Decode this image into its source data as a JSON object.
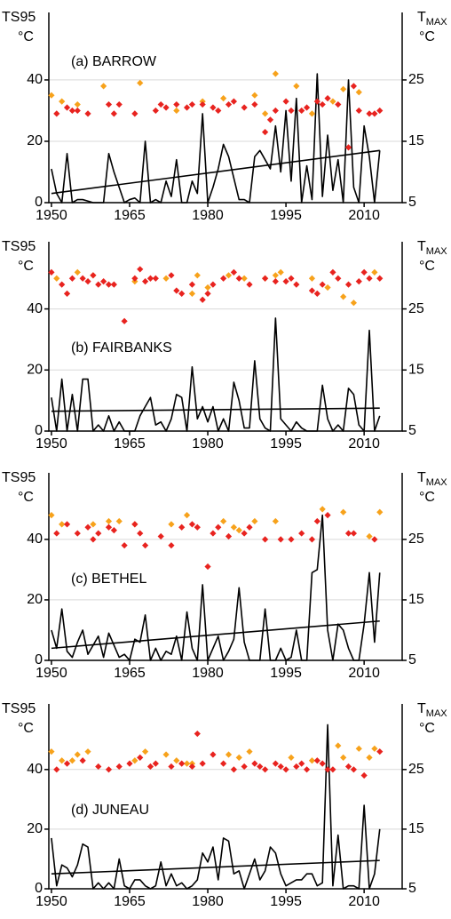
{
  "chart_data": [
    {
      "type": "line",
      "title": "(a) BARROW",
      "ylabel": "TS95",
      "yunit": "°C",
      "y2label": "T",
      "y2label_sub": "MAX",
      "y2unit": "°C",
      "xlim": [
        1949.5,
        2017.3
      ],
      "xticks": [
        1950,
        1965,
        1980,
        1995,
        2010
      ],
      "ylim": [
        0,
        62
      ],
      "yticks": [
        0,
        20,
        40
      ],
      "y2lim": [
        5,
        36
      ],
      "y2ticks": [
        5,
        15,
        25
      ],
      "grid": true,
      "x": [
        1950,
        1951,
        1952,
        1953,
        1954,
        1955,
        1956,
        1957,
        1958,
        1959,
        1960,
        1961,
        1962,
        1963,
        1964,
        1965,
        1966,
        1967,
        1968,
        1969,
        1970,
        1971,
        1972,
        1973,
        1974,
        1975,
        1976,
        1977,
        1978,
        1979,
        1980,
        1981,
        1982,
        1983,
        1984,
        1985,
        1986,
        1987,
        1988,
        1989,
        1990,
        1991,
        1992,
        1993,
        1994,
        1995,
        1996,
        1997,
        1998,
        1999,
        2000,
        2001,
        2002,
        2003,
        2004,
        2005,
        2006,
        2007,
        2008,
        2009,
        2010,
        2011,
        2012,
        2013
      ],
      "series": [
        {
          "color": "#000000",
          "values": [
            11,
            3,
            0,
            16,
            0,
            1,
            1,
            0.5,
            0,
            0,
            0,
            16,
            10,
            5,
            0,
            1,
            1.5,
            0,
            20,
            0,
            1,
            0,
            7,
            2,
            14,
            0,
            0,
            7,
            3,
            29,
            0,
            5,
            11,
            19,
            15,
            8,
            1,
            1,
            0,
            15,
            17,
            14,
            11,
            25,
            10,
            30,
            7,
            34,
            0,
            12,
            1,
            42,
            2,
            22,
            4,
            14,
            0,
            40,
            5,
            0,
            25,
            15,
            0,
            17
          ]
        },
        {
          "color": "#000000",
          "x": [
            1950,
            2013
          ],
          "values": [
            3,
            17
          ]
        },
        {
          "color": "#f7a21b",
          "axis": "y2",
          "x": [
            1950,
            1952,
            1955,
            1960,
            1967,
            1974,
            1979,
            1983,
            1989,
            1991,
            1993,
            1997,
            2000,
            2004,
            2006,
            2009
          ],
          "values": [
            22.5,
            21.5,
            21,
            24,
            24.5,
            20,
            21.5,
            22,
            22.5,
            19.5,
            26,
            24,
            19.5,
            21.5,
            23.5,
            23
          ]
        },
        {
          "color": "#e8231f",
          "axis": "y2",
          "x": [
            1951,
            1953,
            1954,
            1955,
            1957,
            1961,
            1962,
            1963,
            1966,
            1970,
            1971,
            1972,
            1974,
            1976,
            1977,
            1979,
            1981,
            1982,
            1984,
            1985,
            1987,
            1989,
            1991,
            1992,
            1993,
            1995,
            1996,
            1998,
            1999,
            2001,
            2002,
            2003,
            2005,
            2007,
            2008,
            2009,
            2011,
            2012,
            2013
          ],
          "values": [
            19.5,
            20.5,
            20,
            20,
            19.5,
            21,
            19.5,
            21,
            19.5,
            20,
            21,
            20.5,
            21,
            20.5,
            21,
            21,
            20.5,
            20,
            21,
            21.5,
            20.5,
            21,
            16.5,
            18.5,
            20,
            21.5,
            20,
            20,
            20.5,
            21.5,
            21,
            22,
            21,
            14,
            24,
            20,
            19.5,
            19.5,
            20
          ]
        }
      ]
    },
    {
      "type": "line",
      "title": "(b) FAIRBANKS",
      "ylabel": "TS95",
      "yunit": "°C",
      "y2label": "T",
      "y2label_sub": "MAX",
      "y2unit": "°C",
      "xlim": [
        1949.5,
        2017.3
      ],
      "xticks": [
        1950,
        1965,
        1980,
        1995,
        2010
      ],
      "ylim": [
        0,
        62
      ],
      "yticks": [
        0,
        20,
        40
      ],
      "y2lim": [
        5,
        36
      ],
      "y2ticks": [
        5,
        15,
        25
      ],
      "grid": true,
      "x": [
        1950,
        1951,
        1952,
        1953,
        1954,
        1955,
        1956,
        1957,
        1958,
        1959,
        1960,
        1961,
        1962,
        1963,
        1964,
        1965,
        1966,
        1967,
        1968,
        1969,
        1970,
        1971,
        1972,
        1973,
        1974,
        1975,
        1976,
        1977,
        1978,
        1979,
        1980,
        1981,
        1982,
        1983,
        1984,
        1985,
        1986,
        1987,
        1988,
        1989,
        1990,
        1991,
        1992,
        1993,
        1994,
        1995,
        1996,
        1997,
        1998,
        1999,
        2000,
        2001,
        2002,
        2003,
        2004,
        2005,
        2006,
        2007,
        2008,
        2009,
        2010,
        2011,
        2012,
        2013
      ],
      "series": [
        {
          "color": "#000000",
          "values": [
            11,
            0,
            17,
            0,
            12,
            0,
            17,
            17,
            0,
            2,
            0,
            5,
            0,
            3,
            0,
            0,
            0,
            5,
            8,
            11,
            2,
            3,
            0,
            4,
            12,
            11,
            0,
            21,
            4,
            8,
            3,
            8,
            0,
            4,
            0,
            16,
            10,
            1,
            1,
            23,
            4,
            1,
            0,
            37,
            4,
            2,
            0,
            3,
            1,
            0,
            0,
            0,
            15,
            4,
            0,
            2,
            0,
            14,
            12,
            2,
            0,
            33,
            0,
            5
          ]
        },
        {
          "color": "#000000",
          "x": [
            1950,
            2013
          ],
          "values": [
            6.5,
            7.5
          ]
        },
        {
          "color": "#f7a21b",
          "axis": "y2",
          "x": [
            1951,
            1955,
            1958,
            1966,
            1972,
            1977,
            1978,
            1980,
            1984,
            1987,
            1991,
            1993,
            1994,
            2000,
            2003,
            2006,
            2008,
            2012
          ],
          "values": [
            30,
            31,
            30.5,
            29.5,
            30,
            27.5,
            30.5,
            28.5,
            30.5,
            30,
            30,
            30.5,
            31,
            30,
            28.5,
            27,
            26,
            31
          ]
        },
        {
          "color": "#e8231f",
          "axis": "y2",
          "x": [
            1950,
            1952,
            1953,
            1954,
            1956,
            1957,
            1958,
            1959,
            1960,
            1961,
            1962,
            1964,
            1966,
            1967,
            1968,
            1969,
            1970,
            1973,
            1974,
            1975,
            1977,
            1979,
            1980,
            1981,
            1983,
            1985,
            1986,
            1988,
            1991,
            1993,
            1995,
            1996,
            1997,
            2000,
            2001,
            2002,
            2004,
            2005,
            2007,
            2009,
            2010,
            2011,
            2013
          ],
          "values": [
            31,
            29,
            27.5,
            30,
            30,
            29.5,
            30.5,
            29,
            29.5,
            29,
            29,
            23,
            30,
            31.5,
            29.5,
            30,
            30,
            30.5,
            28,
            27.5,
            29,
            26.5,
            27.5,
            29,
            30,
            31,
            30,
            29,
            30,
            29.5,
            29.5,
            30,
            29,
            28,
            27.5,
            29,
            31,
            30,
            29,
            29.5,
            31,
            30,
            30
          ]
        }
      ]
    },
    {
      "type": "line",
      "title": "(c) BETHEL",
      "ylabel": "TS95",
      "yunit": "°C",
      "y2label": "T",
      "y2label_sub": "MAX",
      "y2unit": "°C",
      "xlim": [
        1949.5,
        2017.3
      ],
      "xticks": [
        1950,
        1965,
        1980,
        1995,
        2010
      ],
      "ylim": [
        0,
        62
      ],
      "yticks": [
        0,
        20,
        40
      ],
      "y2lim": [
        5,
        36
      ],
      "y2ticks": [
        5,
        15,
        25
      ],
      "grid": true,
      "x": [
        1950,
        1951,
        1952,
        1953,
        1954,
        1955,
        1956,
        1957,
        1958,
        1959,
        1960,
        1961,
        1962,
        1963,
        1964,
        1965,
        1966,
        1967,
        1968,
        1969,
        1970,
        1971,
        1972,
        1973,
        1974,
        1975,
        1976,
        1977,
        1978,
        1979,
        1980,
        1981,
        1982,
        1983,
        1984,
        1985,
        1986,
        1987,
        1988,
        1989,
        1990,
        1991,
        1992,
        1993,
        1994,
        1995,
        1996,
        1997,
        1998,
        1999,
        2000,
        2001,
        2002,
        2003,
        2004,
        2005,
        2006,
        2007,
        2008,
        2009,
        2010,
        2011,
        2012,
        2013
      ],
      "series": [
        {
          "color": "#000000",
          "values": [
            10,
            4,
            17,
            3,
            1,
            6,
            10,
            2,
            5,
            8,
            1,
            9,
            5,
            1,
            2,
            0,
            7,
            6,
            15,
            0,
            4,
            0,
            3,
            2,
            8,
            0,
            16,
            4,
            0,
            25,
            0,
            4,
            8,
            0,
            3,
            7,
            24,
            6,
            0,
            0,
            0,
            17,
            0,
            0,
            4,
            0,
            1,
            10,
            0,
            0,
            29,
            30,
            48,
            10,
            0,
            12,
            10,
            4,
            0,
            0,
            12,
            29,
            6,
            29
          ]
        },
        {
          "color": "#000000",
          "x": [
            1950,
            2013
          ],
          "values": [
            4,
            13
          ]
        },
        {
          "color": "#f7a21b",
          "axis": "y2",
          "x": [
            1950,
            1952,
            1958,
            1961,
            1963,
            1966,
            1973,
            1976,
            1983,
            1985,
            1986,
            1989,
            1993,
            2002,
            2006,
            2011,
            2013
          ],
          "values": [
            29,
            27.5,
            27.5,
            28,
            28,
            27.5,
            27.5,
            29,
            28,
            27,
            26.5,
            28,
            28,
            30,
            29.5,
            25.5,
            29.5
          ]
        },
        {
          "color": "#e8231f",
          "axis": "y2",
          "x": [
            1951,
            1953,
            1955,
            1957,
            1958,
            1959,
            1961,
            1962,
            1964,
            1966,
            1967,
            1968,
            1971,
            1973,
            1975,
            1977,
            1978,
            1980,
            1981,
            1982,
            1984,
            1987,
            1988,
            1991,
            1994,
            1996,
            1998,
            2000,
            2001,
            2003,
            2007,
            2008,
            2012
          ],
          "values": [
            26,
            27.5,
            26,
            27,
            25,
            26,
            27,
            26.5,
            24,
            27.5,
            26,
            24,
            25.5,
            24,
            27,
            27.5,
            27,
            20.5,
            26,
            27,
            25.5,
            26,
            27,
            25,
            25,
            25,
            26,
            25,
            28,
            29,
            26,
            26,
            25
          ]
        }
      ]
    },
    {
      "type": "line",
      "title": "(d) JUNEAU",
      "ylabel": "TS95",
      "yunit": "°C",
      "y2label": "T",
      "y2label_sub": "MAX",
      "y2unit": "°C",
      "xlim": [
        1949.5,
        2017.3
      ],
      "xticks": [
        1950,
        1965,
        1980,
        1995,
        2010
      ],
      "ylim": [
        0,
        62
      ],
      "yticks": [
        0,
        20,
        40
      ],
      "y2lim": [
        5,
        36
      ],
      "y2ticks": [
        5,
        15,
        25
      ],
      "grid": true,
      "x": [
        1950,
        1951,
        1952,
        1953,
        1954,
        1955,
        1956,
        1957,
        1958,
        1959,
        1960,
        1961,
        1962,
        1963,
        1964,
        1965,
        1966,
        1967,
        1968,
        1969,
        1970,
        1971,
        1972,
        1973,
        1974,
        1975,
        1976,
        1977,
        1978,
        1979,
        1980,
        1981,
        1982,
        1983,
        1984,
        1985,
        1986,
        1987,
        1988,
        1989,
        1990,
        1991,
        1992,
        1993,
        1994,
        1995,
        1996,
        1997,
        1998,
        1999,
        2000,
        2001,
        2002,
        2003,
        2004,
        2005,
        2006,
        2007,
        2008,
        2009,
        2010,
        2011,
        2012,
        2013
      ],
      "series": [
        {
          "color": "#000000",
          "values": [
            17,
            1,
            8,
            7,
            4,
            8,
            15,
            14,
            0,
            2,
            0,
            2,
            0,
            10,
            1,
            0,
            3,
            3,
            1,
            0,
            1,
            9,
            1,
            5,
            1,
            2,
            0,
            1,
            3,
            12,
            9,
            14,
            3,
            17,
            16,
            5,
            6,
            0,
            5,
            10,
            3,
            6,
            14,
            12,
            5,
            1,
            2,
            3,
            3,
            5,
            5,
            1,
            2,
            55,
            1,
            18,
            0,
            1,
            1,
            0,
            28,
            0,
            5,
            20
          ]
        },
        {
          "color": "#000000",
          "x": [
            1950,
            2013
          ],
          "values": [
            5,
            9.5
          ]
        },
        {
          "color": "#f7a21b",
          "axis": "y2",
          "x": [
            1950,
            1952,
            1954,
            1955,
            1957,
            1966,
            1968,
            1972,
            1974,
            1976,
            1977,
            1984,
            1986,
            1988,
            1996,
            2000,
            2005,
            2006,
            2009,
            2011,
            2012
          ],
          "values": [
            28,
            26.5,
            26.5,
            27.5,
            28,
            26.5,
            28,
            27.5,
            26.5,
            26,
            26,
            27.5,
            27,
            28,
            27,
            26.5,
            29,
            27,
            28.5,
            27,
            28.5
          ]
        },
        {
          "color": "#e8231f",
          "axis": "y2",
          "x": [
            1951,
            1953,
            1956,
            1959,
            1961,
            1963,
            1965,
            1967,
            1969,
            1970,
            1973,
            1975,
            1977,
            1978,
            1979,
            1981,
            1983,
            1985,
            1987,
            1989,
            1990,
            1991,
            1993,
            1994,
            1995,
            1997,
            1998,
            1999,
            2001,
            2002,
            2003,
            2004,
            2007,
            2008,
            2010,
            2013
          ],
          "values": [
            25,
            26,
            26.5,
            25.5,
            25,
            25.5,
            26,
            27,
            25.5,
            26,
            25.5,
            26,
            25.5,
            31,
            26,
            27.5,
            26,
            25,
            25.5,
            26,
            25.5,
            25,
            26,
            25.5,
            25,
            25.5,
            26,
            25,
            26.5,
            26,
            25,
            25,
            25.5,
            25,
            24,
            28
          ]
        }
      ]
    }
  ]
}
